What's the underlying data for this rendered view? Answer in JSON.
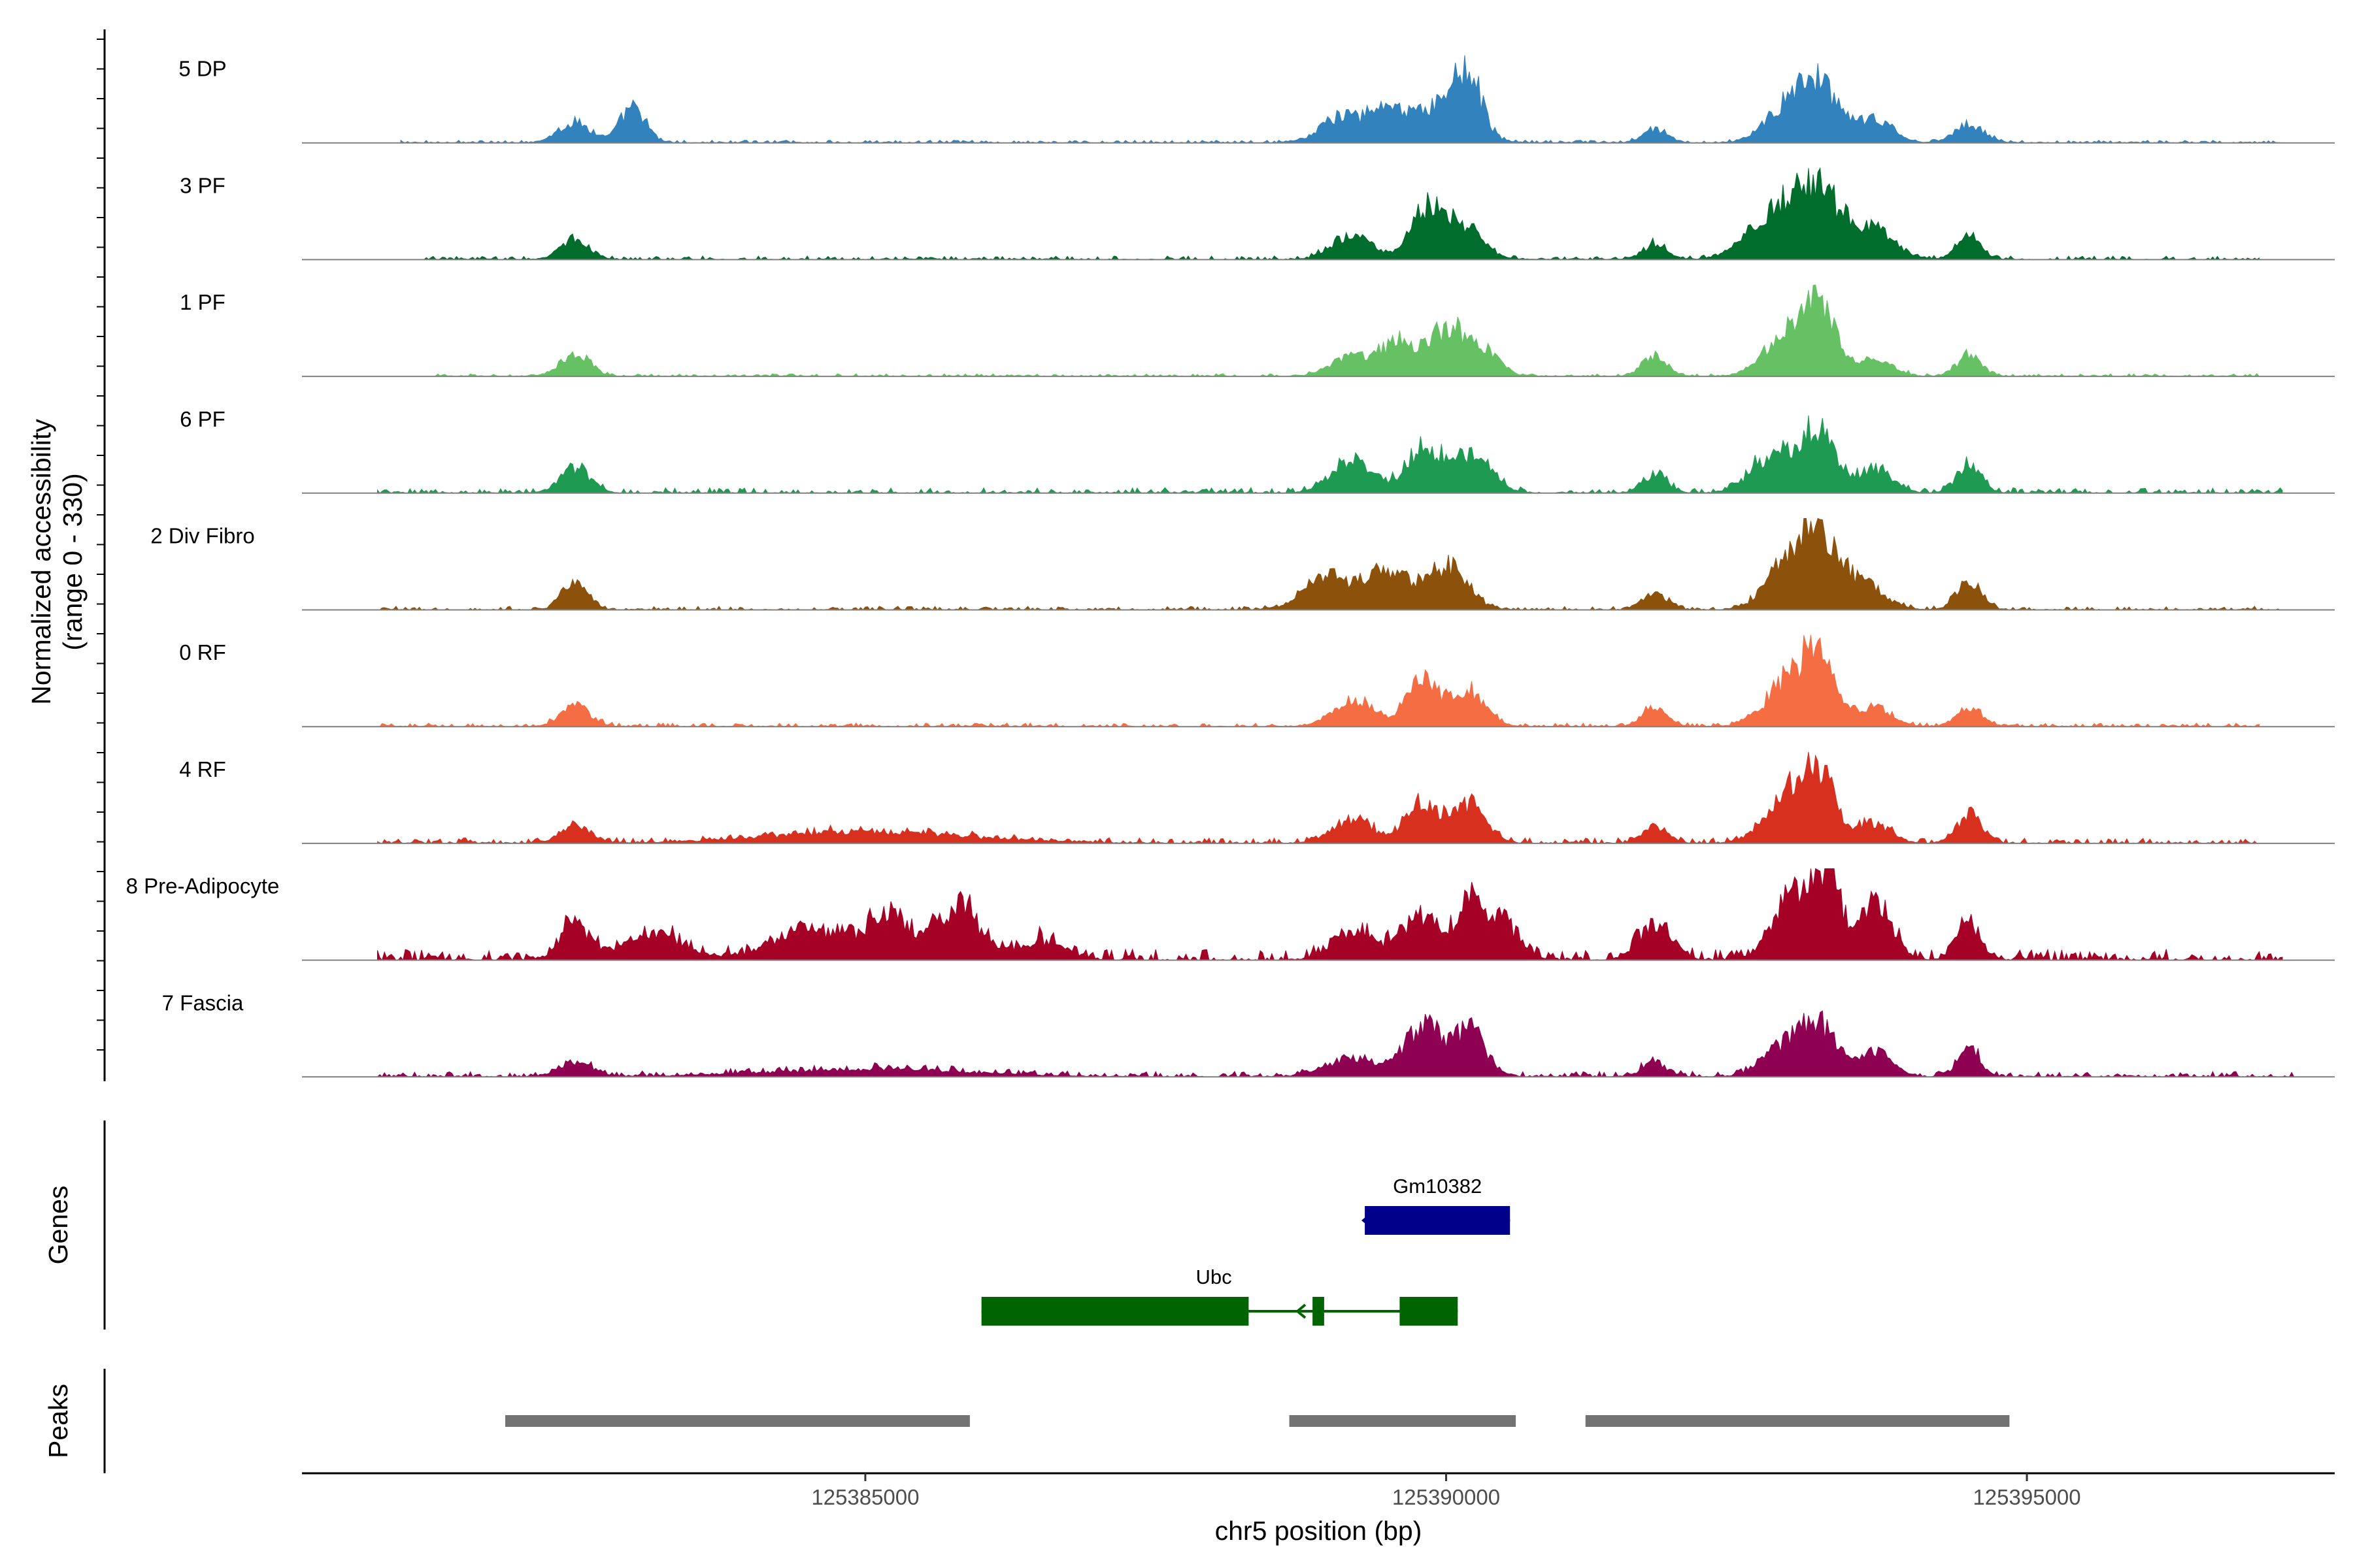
{
  "chart_data": {
    "type": "area",
    "title": "",
    "xlabel": "chr5 position (bp)",
    "ylabel": "Normalized accessibility",
    "ylabel_sub": "(range 0 - 330)",
    "xlim": [
      125380150,
      125397650
    ],
    "x_ticks": [
      125385000,
      125390000,
      125395000
    ],
    "x_tick_labels": [
      "125385000",
      "125390000",
      "125395000"
    ],
    "y_range": [
      0,
      330
    ],
    "tracks": [
      {
        "name": "5 DP",
        "color": "#3182bd",
        "noise": 0.03,
        "start": 125381000,
        "end": 125397200,
        "peaks": [
          [
            125382500,
            0.22,
            200
          ],
          [
            125383000,
            0.38,
            150
          ],
          [
            125389100,
            0.28,
            250
          ],
          [
            125389500,
            0.35,
            220
          ],
          [
            125390000,
            0.45,
            300
          ],
          [
            125390200,
            0.5,
            150
          ],
          [
            125391800,
            0.14,
            150
          ],
          [
            125393200,
            0.62,
            250
          ],
          [
            125392900,
            0.3,
            250
          ],
          [
            125393700,
            0.25,
            200
          ],
          [
            125394500,
            0.2,
            180
          ]
        ]
      },
      {
        "name": "3 PF",
        "color": "#006d2c",
        "noise": 0.04,
        "start": 125381200,
        "end": 125397000,
        "peaks": [
          [
            125382500,
            0.2,
            180
          ],
          [
            125389200,
            0.25,
            250
          ],
          [
            125389800,
            0.45,
            180
          ],
          [
            125390100,
            0.42,
            250
          ],
          [
            125391800,
            0.16,
            150
          ],
          [
            125393200,
            0.72,
            300
          ],
          [
            125392800,
            0.45,
            300
          ],
          [
            125393700,
            0.28,
            250
          ],
          [
            125394500,
            0.24,
            150
          ]
        ]
      },
      {
        "name": "1 PF",
        "color": "#66c164",
        "noise": 0.03,
        "start": 125381300,
        "end": 125397000,
        "peaks": [
          [
            125382500,
            0.25,
            180
          ],
          [
            125389200,
            0.22,
            250
          ],
          [
            125389600,
            0.38,
            200
          ],
          [
            125390000,
            0.5,
            200
          ],
          [
            125390300,
            0.3,
            200
          ],
          [
            125391800,
            0.22,
            150
          ],
          [
            125393200,
            0.8,
            200
          ],
          [
            125392900,
            0.4,
            250
          ],
          [
            125393700,
            0.2,
            200
          ],
          [
            125394500,
            0.22,
            150
          ]
        ]
      },
      {
        "name": "6 PF",
        "color": "#1f9a52",
        "noise": 0.06,
        "start": 125380800,
        "end": 125397200,
        "peaks": [
          [
            125382500,
            0.28,
            180
          ],
          [
            125389200,
            0.35,
            250
          ],
          [
            125389800,
            0.5,
            200
          ],
          [
            125390200,
            0.4,
            250
          ],
          [
            125391800,
            0.2,
            150
          ],
          [
            125393200,
            0.68,
            220
          ],
          [
            125392800,
            0.4,
            250
          ],
          [
            125393700,
            0.25,
            200
          ],
          [
            125394500,
            0.28,
            150
          ]
        ]
      },
      {
        "name": "2 Div Fibro",
        "color": "#8c510a",
        "noise": 0.04,
        "start": 125380800,
        "end": 125397200,
        "peaks": [
          [
            125382500,
            0.3,
            150
          ],
          [
            125389000,
            0.35,
            300
          ],
          [
            125389500,
            0.38,
            250
          ],
          [
            125390000,
            0.48,
            250
          ],
          [
            125391800,
            0.18,
            150
          ],
          [
            125393200,
            0.82,
            250
          ],
          [
            125392900,
            0.35,
            250
          ],
          [
            125393600,
            0.25,
            250
          ],
          [
            125394500,
            0.3,
            150
          ]
        ]
      },
      {
        "name": "0 RF",
        "color": "#f46d43",
        "noise": 0.04,
        "start": 125380800,
        "end": 125397000,
        "peaks": [
          [
            125382500,
            0.22,
            180
          ],
          [
            125389200,
            0.28,
            250
          ],
          [
            125389800,
            0.5,
            200
          ],
          [
            125390200,
            0.4,
            200
          ],
          [
            125391800,
            0.2,
            150
          ],
          [
            125393200,
            0.7,
            220
          ],
          [
            125392900,
            0.4,
            250
          ],
          [
            125393700,
            0.2,
            200
          ],
          [
            125394500,
            0.22,
            150
          ]
        ]
      },
      {
        "name": "4 RF",
        "color": "#d7301f",
        "noise": 0.06,
        "start": 125380800,
        "end": 125397000,
        "peaks": [
          [
            125382500,
            0.2,
            180
          ],
          [
            125385000,
            0.12,
            1200
          ],
          [
            125389200,
            0.25,
            250
          ],
          [
            125389800,
            0.45,
            200
          ],
          [
            125390200,
            0.42,
            200
          ],
          [
            125391800,
            0.18,
            150
          ],
          [
            125393200,
            0.72,
            220
          ],
          [
            125392900,
            0.4,
            250
          ],
          [
            125393700,
            0.2,
            200
          ],
          [
            125394500,
            0.32,
            150
          ]
        ]
      },
      {
        "name": "8 Pre-Adipocyte",
        "color": "#a50026",
        "noise": 0.12,
        "start": 125380800,
        "end": 125397200,
        "peaks": [
          [
            125382500,
            0.38,
            180
          ],
          [
            125383200,
            0.25,
            400
          ],
          [
            125384500,
            0.35,
            400
          ],
          [
            125385200,
            0.45,
            300
          ],
          [
            125385800,
            0.58,
            250
          ],
          [
            125386500,
            0.2,
            300
          ],
          [
            125389200,
            0.32,
            250
          ],
          [
            125389800,
            0.45,
            250
          ],
          [
            125390200,
            0.62,
            150
          ],
          [
            125390500,
            0.38,
            200
          ],
          [
            125391800,
            0.4,
            200
          ],
          [
            125393000,
            0.78,
            250
          ],
          [
            125393300,
            0.85,
            150
          ],
          [
            125393700,
            0.6,
            200
          ],
          [
            125394500,
            0.35,
            150
          ]
        ]
      },
      {
        "name": "7 Fascia",
        "color": "#8e0152",
        "noise": 0.06,
        "start": 125380800,
        "end": 125397300,
        "peaks": [
          [
            125382500,
            0.15,
            200
          ],
          [
            125385000,
            0.08,
            1200
          ],
          [
            125389200,
            0.22,
            300
          ],
          [
            125389800,
            0.55,
            220
          ],
          [
            125390200,
            0.5,
            200
          ],
          [
            125391800,
            0.15,
            150
          ],
          [
            125393200,
            0.55,
            220
          ],
          [
            125392900,
            0.3,
            250
          ],
          [
            125393700,
            0.25,
            200
          ],
          [
            125394500,
            0.32,
            120
          ]
        ]
      }
    ],
    "genes": [
      {
        "name": "Gm10382",
        "color": "#00008b",
        "strand": "-",
        "segments": [
          [
            125389300,
            125390550
          ]
        ],
        "line": [
          125389300,
          125390550
        ]
      },
      {
        "name": "Ubc",
        "color": "#006400",
        "strand": "-",
        "segments": [
          [
            125386000,
            125388300
          ],
          [
            125388850,
            125388950
          ],
          [
            125389600,
            125390100
          ]
        ],
        "line": [
          125386000,
          125390100
        ]
      }
    ],
    "peaks": [
      {
        "start": 125381900,
        "end": 125385900
      },
      {
        "start": 125388650,
        "end": 125390600
      },
      {
        "start": 125391200,
        "end": 125394850
      }
    ],
    "panel_titles": {
      "genes": "Genes",
      "peaks": "Peaks"
    },
    "peak_color": "#737373"
  }
}
